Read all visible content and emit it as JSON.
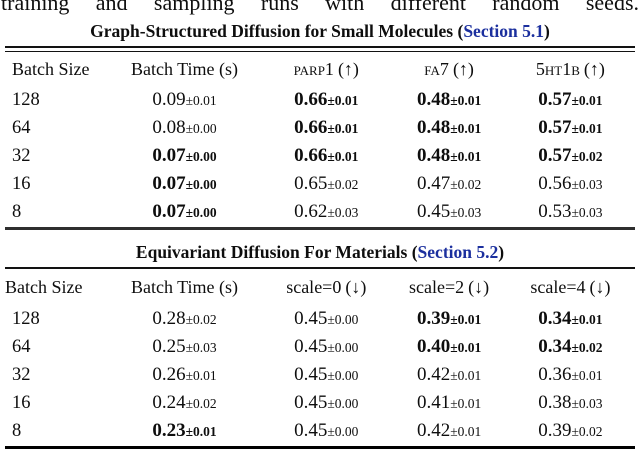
{
  "page": {
    "top_clipped_text": "training and sampling runs with different random seeds."
  },
  "link_color": "#1b2f9e",
  "tables": [
    {
      "title_prefix": "Graph-Structured Diffusion for Small Molecules (",
      "title_link": "Section 5.1",
      "title_suffix": ")",
      "title_rule": "double",
      "bottom_rule": "mid",
      "columns": [
        {
          "label": "Batch Size",
          "sc": false
        },
        {
          "label": "Batch Time (s)",
          "sc": false
        },
        {
          "label": "parp1",
          "arrow": "(↑)",
          "sc": true
        },
        {
          "label": "fa7",
          "arrow": "(↑)",
          "sc": true
        },
        {
          "label": "5ht1b",
          "arrow": "(↑)",
          "sc": true
        }
      ],
      "rows": [
        {
          "batch_size": "128",
          "cells": [
            {
              "v": "0.09",
              "pm": "±0.01",
              "bold": false
            },
            {
              "v": "0.66",
              "pm": "±0.01",
              "bold": true
            },
            {
              "v": "0.48",
              "pm": "±0.01",
              "bold": true
            },
            {
              "v": "0.57",
              "pm": "±0.01",
              "bold": true
            }
          ]
        },
        {
          "batch_size": "64",
          "cells": [
            {
              "v": "0.08",
              "pm": "±0.00",
              "bold": false
            },
            {
              "v": "0.66",
              "pm": "±0.01",
              "bold": true
            },
            {
              "v": "0.48",
              "pm": "±0.01",
              "bold": true
            },
            {
              "v": "0.57",
              "pm": "±0.01",
              "bold": true
            }
          ]
        },
        {
          "batch_size": "32",
          "cells": [
            {
              "v": "0.07",
              "pm": "±0.00",
              "bold": true
            },
            {
              "v": "0.66",
              "pm": "±0.01",
              "bold": true
            },
            {
              "v": "0.48",
              "pm": "±0.01",
              "bold": true
            },
            {
              "v": "0.57",
              "pm": "±0.02",
              "bold": true
            }
          ]
        },
        {
          "batch_size": "16",
          "cells": [
            {
              "v": "0.07",
              "pm": "±0.00",
              "bold": true
            },
            {
              "v": "0.65",
              "pm": "±0.02",
              "bold": false
            },
            {
              "v": "0.47",
              "pm": "±0.02",
              "bold": false
            },
            {
              "v": "0.56",
              "pm": "±0.03",
              "bold": false
            }
          ]
        },
        {
          "batch_size": "8",
          "cells": [
            {
              "v": "0.07",
              "pm": "±0.00",
              "bold": true
            },
            {
              "v": "0.62",
              "pm": "±0.03",
              "bold": false
            },
            {
              "v": "0.45",
              "pm": "±0.03",
              "bold": false
            },
            {
              "v": "0.53",
              "pm": "±0.03",
              "bold": false
            }
          ]
        }
      ]
    },
    {
      "title_prefix": "Equivariant Diffusion For Materials (",
      "title_link": "Section 5.2",
      "title_suffix": ")",
      "title_rule": "single",
      "bottom_rule": "thick",
      "columns": [
        {
          "label": "Batch Size",
          "sc": false
        },
        {
          "label": "Batch Time (s)",
          "sc": false
        },
        {
          "label": "scale=0",
          "arrow": "(↓)",
          "sc": false
        },
        {
          "label": "scale=2",
          "arrow": "(↓)",
          "sc": false
        },
        {
          "label": "scale=4",
          "arrow": "(↓)",
          "sc": false
        }
      ],
      "rows": [
        {
          "batch_size": "128",
          "cells": [
            {
              "v": "0.28",
              "pm": "±0.02",
              "bold": false
            },
            {
              "v": "0.45",
              "pm": "±0.00",
              "bold": false
            },
            {
              "v": "0.39",
              "pm": "±0.01",
              "bold": true
            },
            {
              "v": "0.34",
              "pm": "±0.01",
              "bold": true
            }
          ]
        },
        {
          "batch_size": "64",
          "cells": [
            {
              "v": "0.25",
              "pm": "±0.03",
              "bold": false
            },
            {
              "v": "0.45",
              "pm": "±0.00",
              "bold": false
            },
            {
              "v": "0.40",
              "pm": "±0.01",
              "bold": true
            },
            {
              "v": "0.34",
              "pm": "±0.02",
              "bold": true
            }
          ]
        },
        {
          "batch_size": "32",
          "cells": [
            {
              "v": "0.26",
              "pm": "±0.01",
              "bold": false
            },
            {
              "v": "0.45",
              "pm": "±0.00",
              "bold": false
            },
            {
              "v": "0.42",
              "pm": "±0.01",
              "bold": false
            },
            {
              "v": "0.36",
              "pm": "±0.01",
              "bold": false
            }
          ]
        },
        {
          "batch_size": "16",
          "cells": [
            {
              "v": "0.24",
              "pm": "±0.02",
              "bold": false
            },
            {
              "v": "0.45",
              "pm": "±0.00",
              "bold": false
            },
            {
              "v": "0.41",
              "pm": "±0.01",
              "bold": false
            },
            {
              "v": "0.38",
              "pm": "±0.03",
              "bold": false
            }
          ]
        },
        {
          "batch_size": "8",
          "cells": [
            {
              "v": "0.23",
              "pm": "±0.01",
              "bold": true
            },
            {
              "v": "0.45",
              "pm": "±0.00",
              "bold": false
            },
            {
              "v": "0.42",
              "pm": "±0.01",
              "bold": false
            },
            {
              "v": "0.39",
              "pm": "±0.02",
              "bold": false
            }
          ]
        }
      ]
    }
  ]
}
